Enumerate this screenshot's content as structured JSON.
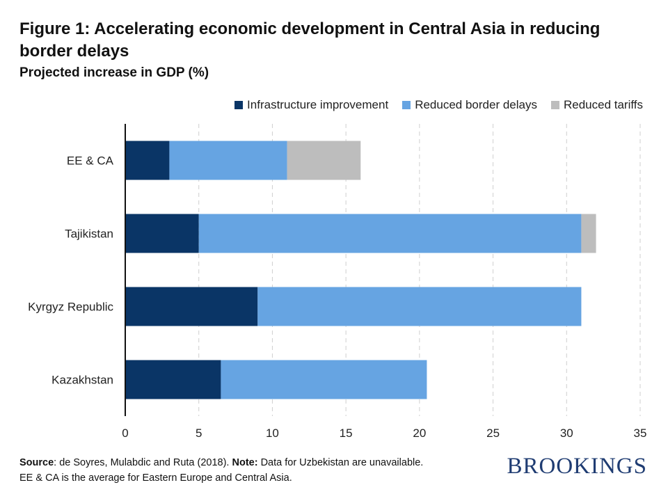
{
  "title": "Figure 1: Accelerating economic development in Central Asia in reducing border delays",
  "subtitle": "Projected increase in GDP (%)",
  "colors": {
    "infrastructure": "#0a3566",
    "border": "#66a4e2",
    "tariffs": "#bdbdbd",
    "brand": "#1f3c72"
  },
  "chart_data": {
    "type": "bar",
    "orientation": "horizontal",
    "stacked": true,
    "categories": [
      "EE & CA",
      "Tajikistan",
      "Kyrgyz Republic",
      "Kazakhstan"
    ],
    "series": [
      {
        "name": "Infrastructure improvement",
        "values": [
          3,
          5,
          9,
          6.5
        ]
      },
      {
        "name": "Reduced border delays",
        "values": [
          8,
          26,
          22,
          14
        ]
      },
      {
        "name": "Reduced tariffs",
        "values": [
          5,
          1,
          0,
          0
        ]
      }
    ],
    "xlim": [
      0,
      35
    ],
    "xticks": [
      "0",
      "5",
      "10",
      "15",
      "20",
      "25",
      "30",
      "35"
    ],
    "grid": "vertical dashed",
    "legend": "top-right"
  },
  "footer": {
    "source_label": "Source",
    "source_text": ": de Soyres, Mulabdic and Ruta (2018). ",
    "note_label": "Note:",
    "note_text": " Data for Uzbekistan are unavailable.",
    "line2": "EE & CA is the average for Eastern Europe and Central Asia."
  },
  "logo": "BROOKINGS"
}
